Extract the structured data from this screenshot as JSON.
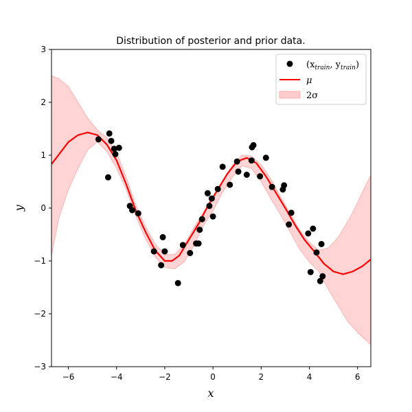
{
  "chart_data": {
    "type": "line",
    "title": "Distribution of posterior and prior data.",
    "xlabel": "x",
    "ylabel": "y",
    "xlim": [
      -6.7,
      6.55
    ],
    "ylim": [
      -3,
      3
    ],
    "xticks": [
      -6,
      -4,
      -2,
      0,
      2,
      4,
      6
    ],
    "yticks": [
      -3,
      -2,
      -1,
      0,
      1,
      2,
      3
    ],
    "grid": false,
    "legend_position": "top-right",
    "legend": [
      {
        "name": "(x_train, y_train)",
        "main": "(x",
        "sub1": "train",
        "mid": ", y",
        "sub2": "train",
        "end": ")"
      },
      {
        "name": "μ"
      },
      {
        "name": "2σ"
      }
    ],
    "colors": {
      "points": "#000000",
      "mean": "#ff0000",
      "band": "#ffcccc",
      "band_edge": "#ffb0b0"
    },
    "mean": {
      "x": [
        -6.7,
        -6.0,
        -5.6,
        -5.2,
        -4.8,
        -4.4,
        -4.0,
        -3.6,
        -3.2,
        -2.8,
        -2.4,
        -2.0,
        -1.7,
        -1.4,
        -1.0,
        -0.6,
        -0.2,
        0.2,
        0.6,
        1.0,
        1.4,
        1.8,
        2.2,
        2.6,
        3.0,
        3.4,
        3.8,
        4.2,
        4.6,
        5.0,
        5.4,
        5.8,
        6.2,
        6.55
      ],
      "y": [
        0.83,
        1.25,
        1.38,
        1.43,
        1.38,
        1.2,
        0.9,
        0.45,
        -0.05,
        -0.45,
        -0.8,
        -1.0,
        -1.0,
        -0.9,
        -0.6,
        -0.3,
        0.05,
        0.35,
        0.65,
        0.88,
        0.95,
        0.85,
        0.6,
        0.3,
        0.0,
        -0.32,
        -0.6,
        -0.82,
        -1.05,
        -1.2,
        -1.25,
        -1.2,
        -1.1,
        -0.97
      ]
    },
    "band": {
      "x": [
        -6.7,
        -6.4,
        -6.0,
        -5.6,
        -5.2,
        -4.8,
        -4.4,
        -4.0,
        -3.6,
        -3.2,
        -2.8,
        -2.4,
        -2.0,
        -1.6,
        -1.2,
        -0.8,
        -0.4,
        0.0,
        0.4,
        0.8,
        1.2,
        1.6,
        2.0,
        2.4,
        2.8,
        3.2,
        3.6,
        4.0,
        4.4,
        4.8,
        5.2,
        5.6,
        6.0,
        6.3,
        6.55
      ],
      "upper": [
        2.5,
        2.45,
        2.3,
        2.0,
        1.7,
        1.48,
        1.33,
        1.05,
        0.58,
        0.05,
        -0.35,
        -0.68,
        -0.88,
        -0.88,
        -0.7,
        -0.38,
        -0.08,
        0.18,
        0.52,
        0.8,
        1.0,
        0.98,
        0.82,
        0.55,
        0.22,
        -0.1,
        -0.42,
        -0.65,
        -0.8,
        -0.75,
        -0.55,
        -0.25,
        0.1,
        0.4,
        0.62
      ],
      "lower": [
        -0.9,
        -0.2,
        0.35,
        0.75,
        1.1,
        1.25,
        1.07,
        0.75,
        0.35,
        -0.15,
        -0.58,
        -0.92,
        -1.12,
        -1.15,
        -1.02,
        -0.72,
        -0.33,
        -0.05,
        0.3,
        0.58,
        0.8,
        0.75,
        0.5,
        0.18,
        -0.12,
        -0.45,
        -0.78,
        -1.02,
        -1.2,
        -1.55,
        -1.85,
        -2.15,
        -2.35,
        -2.48,
        -2.58
      ]
    },
    "points": {
      "x": [
        -4.75,
        -4.35,
        -4.3,
        -4.22,
        -4.1,
        -4.05,
        -3.9,
        -3.45,
        -3.35,
        -3.1,
        -2.45,
        -2.15,
        -2.08,
        -2.0,
        -1.45,
        -1.25,
        -0.95,
        -0.7,
        -0.6,
        -0.55,
        -0.45,
        -0.22,
        -0.15,
        -0.05,
        0.0,
        0.2,
        0.4,
        0.7,
        1.0,
        1.05,
        1.4,
        1.6,
        1.62,
        1.68,
        1.95,
        2.2,
        2.45,
        2.9,
        2.95,
        3.15,
        3.25,
        3.95,
        4.05,
        4.15,
        4.3,
        4.45,
        4.5,
        4.55
      ],
      "y": [
        1.3,
        0.58,
        1.41,
        1.27,
        1.12,
        1.02,
        1.14,
        0.04,
        -0.04,
        -0.1,
        -0.82,
        -1.08,
        -0.55,
        -0.82,
        -1.42,
        -0.7,
        -0.85,
        -0.67,
        -0.67,
        -0.41,
        -0.21,
        0.28,
        0.04,
        0.18,
        -0.16,
        0.36,
        0.78,
        0.44,
        0.88,
        0.69,
        0.63,
        0.9,
        1.15,
        1.19,
        0.6,
        0.95,
        0.4,
        0.35,
        0.43,
        -0.31,
        -0.09,
        -0.48,
        -1.21,
        -0.39,
        -0.84,
        -1.38,
        -0.68,
        -1.29
      ]
    }
  }
}
